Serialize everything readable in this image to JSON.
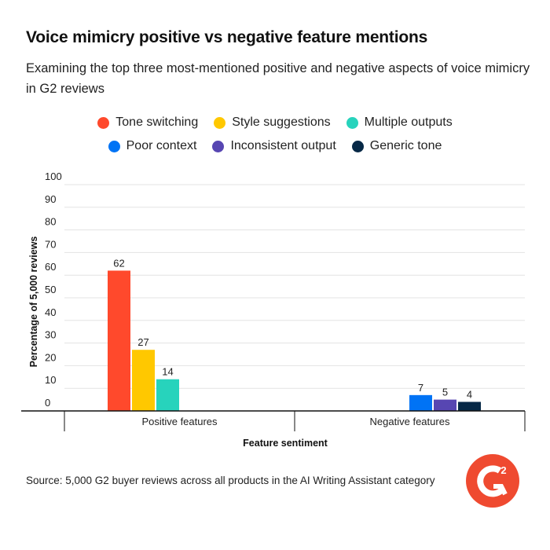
{
  "chart_data": {
    "type": "bar",
    "title": "Voice mimicry positive vs negative feature mentions",
    "subtitle": "Examining the top three most-mentioned positive and negative aspects of voice mimicry in G2 reviews",
    "xlabel": "Feature sentiment",
    "ylabel": "Percentage of 5,000 reviews",
    "ylim": [
      0,
      100
    ],
    "yticks": [
      0,
      10,
      20,
      30,
      40,
      50,
      60,
      70,
      80,
      90,
      100
    ],
    "grid": true,
    "legend_placement": "top",
    "categories": [
      "Positive features",
      "Negative features"
    ],
    "groups": [
      {
        "category": "Positive features",
        "bars": [
          {
            "name": "Tone switching",
            "value": 62,
            "color": "#ff492c"
          },
          {
            "name": "Style suggestions",
            "value": 27,
            "color": "#ffc800"
          },
          {
            "name": "Multiple outputs",
            "value": 14,
            "color": "#27d3bc"
          }
        ]
      },
      {
        "category": "Negative features",
        "bars": [
          {
            "name": "Poor context",
            "value": 7,
            "color": "#0073f5"
          },
          {
            "name": "Inconsistent output",
            "value": 5,
            "color": "#5746b2"
          },
          {
            "name": "Generic tone",
            "value": 4,
            "color": "#062846"
          }
        ]
      }
    ],
    "legend": [
      {
        "name": "Tone switching",
        "color": "#ff492c"
      },
      {
        "name": "Style suggestions",
        "color": "#ffc800"
      },
      {
        "name": "Multiple outputs",
        "color": "#27d3bc"
      },
      {
        "name": "Poor context",
        "color": "#0073f5"
      },
      {
        "name": "Inconsistent output",
        "color": "#5746b2"
      },
      {
        "name": "Generic tone",
        "color": "#062846"
      }
    ]
  },
  "source": "Source: 5,000 G2 buyer reviews across all products in the AI Writing Assistant category",
  "logo": {
    "text": "G2",
    "color": "#ef4a30",
    "icon": "g2-logo"
  }
}
